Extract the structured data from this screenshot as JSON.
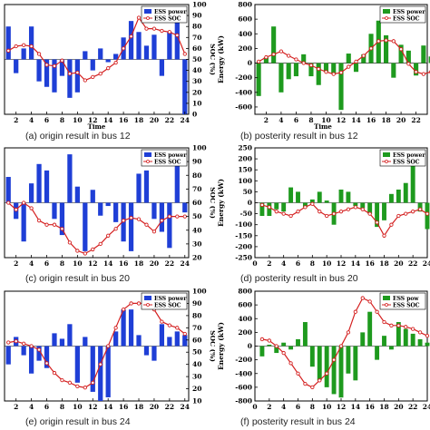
{
  "colors": {
    "blue": "#1f3fd6",
    "green": "#1e9a1e",
    "red": "#d42020"
  },
  "legend": {
    "power": "ESS power",
    "soc": "ESS SOC"
  },
  "legend_f": {
    "power": "ESS pow",
    "soc": "ESS SOC"
  },
  "captions": {
    "a": "(a) origin result in bus 12",
    "b": "(b) posterity result in bus 12",
    "c": "(c) origin result in bus 20",
    "d": "(d) posterity result in bus 20",
    "e": "(e) origin result in bus 24",
    "f": "(f) posterity result in bus 24"
  },
  "labels": {
    "time": "Time",
    "soc": "SOC (%)",
    "energy": "Energy (kW)"
  },
  "chart_data": [
    {
      "id": "a",
      "type": "bar",
      "title": "(a) origin result in bus 12",
      "xlabel": "Time",
      "y2label": "SOC (%)",
      "x": [
        1,
        2,
        3,
        4,
        5,
        6,
        7,
        8,
        9,
        10,
        11,
        12,
        13,
        14,
        15,
        16,
        17,
        18,
        19,
        20,
        21,
        22,
        23,
        24
      ],
      "xticks": [
        2,
        4,
        6,
        8,
        10,
        12,
        14,
        16,
        18,
        20,
        22,
        24
      ],
      "y2ticks": [
        0,
        10,
        20,
        30,
        40,
        50,
        60,
        70,
        80,
        90,
        100
      ],
      "y2lim": [
        0,
        100
      ],
      "series": [
        {
          "name": "ESS power",
          "axis": "left",
          "values": [
            12,
            -5,
            4,
            12,
            -8,
            -10,
            -12,
            -6,
            -14,
            -12,
            3,
            -4,
            4,
            -1,
            2,
            8,
            14,
            10,
            5,
            9,
            -6,
            10,
            14,
            -20
          ]
        },
        {
          "name": "ESS SOC",
          "axis": "right",
          "values": [
            58,
            62,
            63,
            62,
            55,
            45,
            44,
            49,
            37,
            38,
            31,
            34,
            37,
            42,
            47,
            60,
            71,
            88,
            78,
            78,
            76,
            75,
            72,
            55
          ]
        }
      ]
    },
    {
      "id": "b",
      "type": "bar",
      "title": "(b) posterity result in bus 12",
      "xlabel": "Time",
      "ylabel": "Energy (kW)",
      "x": [
        1,
        2,
        3,
        4,
        5,
        6,
        7,
        8,
        9,
        10,
        11,
        12,
        13,
        14,
        15,
        16,
        17,
        18,
        19,
        20,
        21,
        22,
        23,
        24
      ],
      "xticks": [
        2,
        4,
        6,
        8,
        10,
        12,
        14,
        16,
        18,
        20,
        22
      ],
      "yticks": [
        -600,
        -400,
        -200,
        0,
        200,
        400,
        600,
        800
      ],
      "ylim": [
        -700,
        800
      ],
      "series": [
        {
          "name": "ESS power",
          "values": [
            -450,
            80,
            500,
            -400,
            -220,
            -180,
            120,
            -180,
            -300,
            -120,
            -150,
            -640,
            130,
            -120,
            120,
            400,
            580,
            380,
            -200,
            250,
            170,
            -170,
            240,
            90
          ]
        },
        {
          "name": "ESS SOC",
          "values": [
            20,
            80,
            120,
            160,
            100,
            50,
            0,
            -30,
            -80,
            -120,
            -150,
            -130,
            -50,
            20,
            100,
            200,
            300,
            310,
            300,
            190,
            -10,
            -120,
            -150,
            -120
          ]
        }
      ]
    },
    {
      "id": "c",
      "type": "bar",
      "title": "(c) origin result in bus 20",
      "xlabel": "",
      "y2label": "SOC (%)",
      "x": [
        1,
        2,
        3,
        4,
        5,
        6,
        7,
        8,
        9,
        10,
        11,
        12,
        13,
        14,
        15,
        16,
        17,
        18,
        19,
        20,
        21,
        22,
        23,
        24
      ],
      "xticks": [
        2,
        4,
        6,
        8,
        10,
        12,
        14,
        16,
        18,
        20,
        22,
        24
      ],
      "y2ticks": [
        20,
        30,
        40,
        50,
        60,
        70,
        80,
        90,
        100
      ],
      "y2lim": [
        20,
        100
      ],
      "series": [
        {
          "name": "ESS power",
          "axis": "left",
          "values": [
            8,
            -5,
            -12,
            6,
            12,
            10,
            -5,
            -10,
            15,
            5,
            -15,
            4,
            -4,
            -1,
            -6,
            -12,
            -15,
            9,
            10,
            -5,
            -9,
            -14,
            13,
            -3
          ]
        },
        {
          "name": "ESS SOC",
          "axis": "right",
          "values": [
            60,
            55,
            60,
            56,
            47,
            44,
            44,
            41,
            31,
            25,
            23,
            26,
            30,
            36,
            41,
            47,
            49,
            48,
            44,
            39,
            47,
            50,
            50,
            50
          ]
        }
      ]
    },
    {
      "id": "d",
      "type": "bar",
      "title": "(d) posterity result in bus 20",
      "xlabel": "",
      "ylabel": "Energy (kW)",
      "x": [
        1,
        2,
        3,
        4,
        5,
        6,
        7,
        8,
        9,
        10,
        11,
        12,
        13,
        14,
        15,
        16,
        17,
        18,
        19,
        20,
        21,
        22,
        23,
        24
      ],
      "xticks": [
        0,
        2,
        4,
        6,
        8,
        10,
        12,
        14,
        16,
        18,
        20,
        22,
        24
      ],
      "yticks": [
        -250,
        -200,
        -150,
        -100,
        -50,
        0,
        50,
        100,
        150,
        200,
        250
      ],
      "ylim": [
        -250,
        250
      ],
      "series": [
        {
          "name": "ESS power",
          "values": [
            -60,
            -60,
            -30,
            -40,
            70,
            50,
            -20,
            15,
            50,
            10,
            -100,
            60,
            50,
            -15,
            -25,
            -50,
            -110,
            -80,
            40,
            60,
            90,
            220,
            -40,
            -120
          ]
        },
        {
          "name": "ESS SOC",
          "values": [
            -10,
            -20,
            -40,
            -50,
            -60,
            -40,
            -20,
            -5,
            -40,
            -60,
            -50,
            -40,
            -30,
            -20,
            -30,
            -50,
            -90,
            -150,
            -100,
            -60,
            -50,
            -40,
            -30,
            -50
          ]
        }
      ]
    },
    {
      "id": "e",
      "type": "bar",
      "title": "(e) origin result in bus 24",
      "xlabel": "",
      "y2label": "SOC (%)",
      "x": [
        1,
        2,
        3,
        4,
        5,
        6,
        7,
        8,
        9,
        10,
        11,
        12,
        13,
        14,
        15,
        16,
        17,
        18,
        19,
        20,
        21,
        22,
        23,
        24
      ],
      "xticks": [
        2,
        4,
        6,
        8,
        10,
        12,
        14,
        16,
        18,
        20,
        22,
        24
      ],
      "y2ticks": [
        10,
        20,
        30,
        40,
        50,
        60,
        70,
        80,
        90,
        100
      ],
      "y2lim": [
        10,
        100
      ],
      "series": [
        {
          "name": "ESS power",
          "axis": "left",
          "values": [
            -10,
            5,
            -5,
            -15,
            -8,
            -12,
            7,
            4,
            12,
            -20,
            5,
            -25,
            -30,
            -28,
            8,
            20,
            20,
            6,
            -5,
            -8,
            12,
            5,
            8,
            6
          ]
        },
        {
          "name": "ESS SOC",
          "axis": "right",
          "values": [
            58,
            59,
            57,
            55,
            52,
            41,
            33,
            27,
            25,
            22,
            21,
            25,
            40,
            55,
            70,
            85,
            90,
            90,
            90,
            85,
            75,
            72,
            70,
            65
          ]
        }
      ]
    },
    {
      "id": "f",
      "type": "bar",
      "title": "(f) posterity result in bus 24",
      "xlabel": "",
      "ylabel": "Energy (kW)",
      "x": [
        1,
        2,
        3,
        4,
        5,
        6,
        7,
        8,
        9,
        10,
        11,
        12,
        13,
        14,
        15,
        16,
        17,
        18,
        19,
        20,
        21,
        22,
        23,
        24
      ],
      "xticks": [
        0,
        2,
        4,
        6,
        8,
        10,
        12,
        14,
        16,
        18,
        20,
        22,
        24
      ],
      "yticks": [
        -800,
        -600,
        -400,
        -200,
        0,
        200,
        400,
        600,
        800
      ],
      "ylim": [
        -800,
        800
      ],
      "series": [
        {
          "name": "ESS pow",
          "values": [
            -150,
            20,
            -100,
            50,
            -50,
            100,
            350,
            -300,
            -500,
            -600,
            -700,
            -750,
            -400,
            -500,
            200,
            500,
            -200,
            150,
            -50,
            350,
            250,
            180,
            100,
            50
          ]
        },
        {
          "name": "ESS SOC",
          "values": [
            100,
            80,
            0,
            -100,
            -250,
            -400,
            -550,
            -600,
            -500,
            -400,
            -200,
            0,
            200,
            500,
            700,
            650,
            500,
            350,
            300,
            300,
            280,
            250,
            200,
            150
          ]
        }
      ]
    }
  ]
}
